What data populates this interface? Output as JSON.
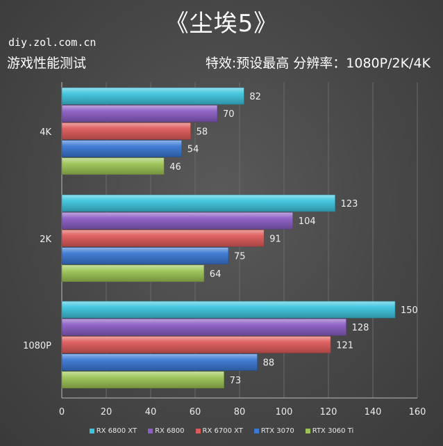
{
  "header": {
    "title": "《尘埃5》",
    "site": "diy.zol.com.cn",
    "subtitle": "游戏性能测试",
    "settings": "特效:预设最高  分辨率：1080P/2K/4K"
  },
  "colors": {
    "RX 6800 XT": "#3dc4dd",
    "RX 6800": "#8a5ec4",
    "RX 6700 XT": "#de5a5a",
    "RTX 3070": "#3a78d4",
    "RTX 3060 Ti": "#9cc455"
  },
  "chart_data": {
    "type": "bar",
    "orientation": "horizontal",
    "categories": [
      "4K",
      "2K",
      "1080P"
    ],
    "series": [
      {
        "name": "RX 6800 XT",
        "values": [
          82,
          123,
          150
        ]
      },
      {
        "name": "RX 6800",
        "values": [
          70,
          104,
          128
        ]
      },
      {
        "name": "RX 6700 XT",
        "values": [
          58,
          91,
          121
        ]
      },
      {
        "name": "RTX 3070",
        "values": [
          54,
          75,
          88
        ]
      },
      {
        "name": "RTX 3060 Ti",
        "values": [
          46,
          64,
          73
        ]
      }
    ],
    "xlim": [
      0,
      160
    ],
    "xticks": [
      0,
      20,
      40,
      60,
      80,
      100,
      120,
      140,
      160
    ],
    "grid": true,
    "legend_position": "bottom"
  }
}
